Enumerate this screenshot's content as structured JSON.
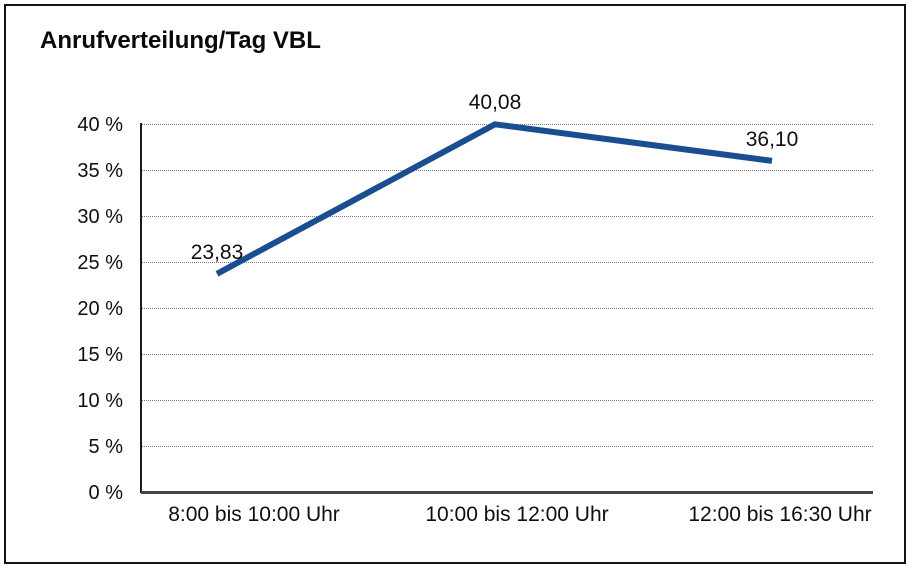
{
  "title": "Anrufverteilung/Tag VBL",
  "chart_data": {
    "type": "line",
    "title": "Anrufverteilung/Tag VBL",
    "categories": [
      "8:00 bis 10:00 Uhr",
      "10:00 bis 12:00 Uhr",
      "12:00 bis 16:30 Uhr"
    ],
    "values": [
      23.83,
      40.08,
      36.1
    ],
    "data_labels": [
      "23,83",
      "40,08",
      "36,10"
    ],
    "y_ticks": [
      0,
      5,
      10,
      15,
      20,
      25,
      30,
      35,
      40
    ],
    "y_tick_labels": [
      "0 %",
      "5 %",
      "10 %",
      "15 %",
      "20 %",
      "25 %",
      "30 %",
      "35 %",
      "40 %"
    ],
    "ylim": [
      0,
      40
    ],
    "xlabel": "",
    "ylabel": "",
    "grid": "horizontal-dotted",
    "legend": "none",
    "line_color": "#1a4e91"
  },
  "colors": {
    "line": "#1a4e91",
    "gridline": "#7c7c7c",
    "y_axis": "#1a1a1a",
    "x_axis": "#474747",
    "frame_border": "#141414",
    "background": "#ffffff",
    "text": "#0f0f0f"
  }
}
